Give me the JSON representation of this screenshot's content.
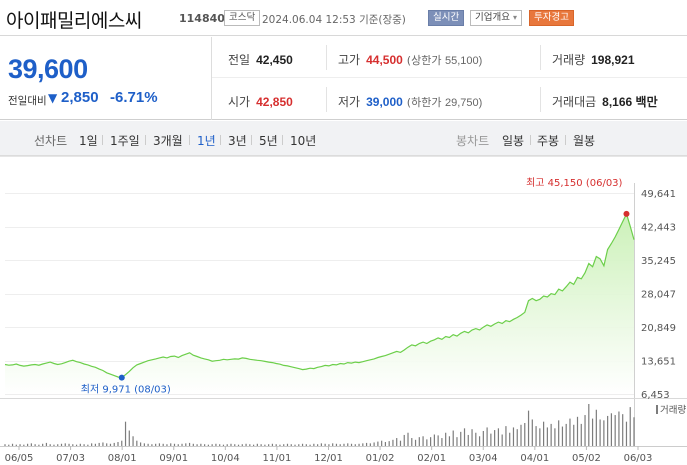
{
  "header": {
    "name": "아이패밀리에스씨",
    "code": "114840",
    "market": "코스닥",
    "datetime": "2024.06.04 12:53",
    "basis": "기준(장중)",
    "realtime_label": "실시간",
    "overview_label": "기업개요",
    "overview_caret": "▾",
    "warning_label": "투자경고"
  },
  "price": {
    "current": "39,600",
    "change_label": "전일대비",
    "change_arrow": "▼",
    "change_value": "2,850",
    "change_pct": "-6.71%"
  },
  "stats": {
    "prev_label": "전일",
    "prev": "42,450",
    "high_label": "고가",
    "high": "44,500",
    "upper_label": "(상한가",
    "upper": "55,100)",
    "volume_label": "거래량",
    "volume": "198,921",
    "open_label": "시가",
    "open": "42,850",
    "low_label": "저가",
    "low": "39,000",
    "lower_label": "(하한가",
    "lower": "29,750)",
    "amount_label": "거래대금",
    "amount": "8,166 백만"
  },
  "tabs": {
    "line_label": "선차트",
    "periods": [
      "1일",
      "1주일",
      "3개월",
      "1년",
      "3년",
      "5년",
      "10년"
    ],
    "active_period": "1년",
    "candle_label": "봉차트",
    "candles": [
      "일봉",
      "주봉",
      "월봉"
    ]
  },
  "colors": {
    "up": "#d62f2f",
    "down": "#1e5fc8",
    "line": "#6ccf4a",
    "fill_top": "#c9f0b5",
    "volume": "#7c7c7c"
  },
  "chart_data": {
    "type": "area",
    "x_range": [
      "2023-06-05",
      "2024-06-04"
    ],
    "xticks": [
      "06/05",
      "07/03",
      "08/01",
      "09/01",
      "10/04",
      "11/01",
      "12/01",
      "01/02",
      "02/01",
      "03/04",
      "04/01",
      "05/02",
      "06/03"
    ],
    "yticks": [
      49641,
      42443,
      35245,
      28047,
      20849,
      13651,
      6453
    ],
    "ylim": [
      6453,
      49641
    ],
    "high_annotation": "최고 45,150 (06/03)",
    "low_annotation": "최저 9,971 (08/03)",
    "volume_legend": "거래량",
    "series": [
      {
        "values": [
          12800,
          12650,
          12700,
          12900,
          12600,
          12450,
          12550,
          12700,
          12800,
          12650,
          12900,
          13100,
          13300,
          13000,
          12800,
          12950,
          13200,
          13500,
          13700,
          13400,
          13200,
          12900,
          12700,
          12400,
          12200,
          11800,
          11500,
          11000,
          10700,
          10400,
          10100,
          9971,
          10600,
          11300,
          12100,
          12700,
          13000,
          13300,
          13600,
          13800,
          14000,
          14200,
          14400,
          14200,
          14500,
          14600,
          14300,
          14700,
          15000,
          15300,
          14800,
          14500,
          14200,
          14000,
          13800,
          13500,
          13600,
          13700,
          13900,
          13800,
          13900,
          14000,
          13950,
          14200,
          14100,
          13900,
          13800,
          13700,
          13600,
          13450,
          13300,
          13200,
          13000,
          12850,
          12600,
          12500,
          12300,
          12100,
          11900,
          11700,
          11800,
          12000,
          11900,
          12200,
          12350,
          12600,
          12500,
          12800,
          12700,
          13000,
          12900,
          13200,
          13100,
          13300,
          13200,
          13400,
          13600,
          13800,
          14000,
          14300,
          14500,
          14700,
          15000,
          15300,
          15600,
          15400,
          15900,
          16500,
          17000,
          16800,
          17300,
          17600,
          17300,
          17800,
          18100,
          18500,
          18200,
          18800,
          18600,
          19200,
          18900,
          19500,
          19900,
          19600,
          20200,
          20500,
          20200,
          20800,
          21300,
          21000,
          21500,
          21900,
          21600,
          22200,
          22000,
          22500,
          22900,
          23400,
          24000,
          26500,
          27000,
          26500,
          26800,
          27500,
          27300,
          28000,
          27800,
          29000,
          28600,
          29500,
          30500,
          30000,
          31500,
          31200,
          32500,
          34500,
          33800,
          36000,
          35500,
          34000,
          37500,
          38800,
          40200,
          41800,
          43500,
          45150,
          42500,
          39600
        ]
      }
    ],
    "volume": [
      0.04,
      0.03,
      0.05,
      0.03,
      0.04,
      0.03,
      0.05,
      0.06,
      0.04,
      0.03,
      0.05,
      0.07,
      0.04,
      0.03,
      0.04,
      0.05,
      0.06,
      0.05,
      0.04,
      0.03,
      0.05,
      0.04,
      0.03,
      0.06,
      0.05,
      0.07,
      0.08,
      0.06,
      0.05,
      0.07,
      0.09,
      0.12,
      0.55,
      0.35,
      0.22,
      0.12,
      0.08,
      0.06,
      0.05,
      0.04,
      0.05,
      0.06,
      0.05,
      0.04,
      0.06,
      0.05,
      0.04,
      0.05,
      0.06,
      0.07,
      0.05,
      0.04,
      0.05,
      0.04,
      0.03,
      0.04,
      0.05,
      0.04,
      0.03,
      0.04,
      0.05,
      0.04,
      0.03,
      0.04,
      0.05,
      0.04,
      0.03,
      0.05,
      0.04,
      0.03,
      0.04,
      0.05,
      0.04,
      0.03,
      0.04,
      0.05,
      0.04,
      0.03,
      0.04,
      0.05,
      0.04,
      0.03,
      0.05,
      0.04,
      0.06,
      0.05,
      0.04,
      0.06,
      0.05,
      0.04,
      0.05,
      0.06,
      0.05,
      0.04,
      0.05,
      0.06,
      0.07,
      0.06,
      0.08,
      0.1,
      0.12,
      0.09,
      0.11,
      0.14,
      0.18,
      0.12,
      0.25,
      0.3,
      0.18,
      0.14,
      0.2,
      0.22,
      0.15,
      0.2,
      0.26,
      0.24,
      0.18,
      0.3,
      0.22,
      0.35,
      0.2,
      0.32,
      0.4,
      0.25,
      0.38,
      0.3,
      0.22,
      0.34,
      0.42,
      0.28,
      0.36,
      0.4,
      0.26,
      0.45,
      0.3,
      0.42,
      0.38,
      0.48,
      0.52,
      0.8,
      0.6,
      0.45,
      0.4,
      0.55,
      0.42,
      0.5,
      0.4,
      0.58,
      0.44,
      0.5,
      0.62,
      0.48,
      0.66,
      0.5,
      0.7,
      0.95,
      0.62,
      0.82,
      0.6,
      0.58,
      0.68,
      0.74,
      0.7,
      0.78,
      0.72,
      0.55,
      0.88,
      0.65
    ]
  }
}
